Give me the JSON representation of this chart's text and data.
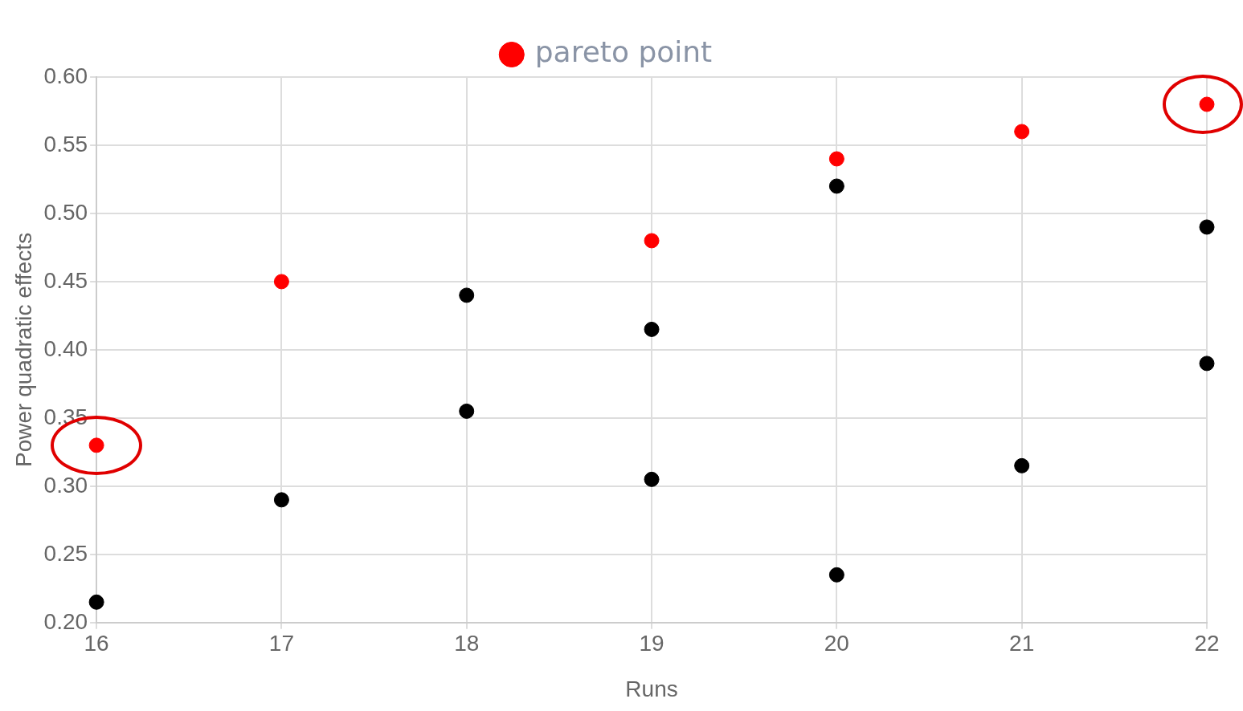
{
  "chart_data": {
    "type": "scatter",
    "xlabel": "Runs",
    "ylabel": "Power quadratic effects",
    "xlim": [
      16,
      22
    ],
    "xticks": [
      16,
      17,
      18,
      19,
      20,
      21,
      22
    ],
    "ylim": [
      0.2,
      0.6
    ],
    "yticks": [
      {
        "value": 0.2,
        "label": "0.20"
      },
      {
        "value": 0.25,
        "label": "0.25"
      },
      {
        "value": 0.3,
        "label": "0.30"
      },
      {
        "value": 0.35,
        "label": "0.35"
      },
      {
        "value": 0.4,
        "label": "0.40"
      },
      {
        "value": 0.45,
        "label": "0.45"
      },
      {
        "value": 0.5,
        "label": "0.50"
      },
      {
        "value": 0.55,
        "label": "0.55"
      },
      {
        "value": 0.6,
        "label": "0.60"
      }
    ],
    "grid": true,
    "legend": "top",
    "marker": "circle",
    "series": [
      {
        "name": "pareto point",
        "color": "#ff0000",
        "x": [
          16,
          17,
          19,
          20,
          21,
          22
        ],
        "values": [
          0.33,
          0.45,
          0.48,
          0.54,
          0.56,
          0.58
        ]
      },
      {
        "color": "#000000",
        "x": [
          16,
          17,
          18,
          18,
          19,
          19,
          20,
          20,
          21,
          22,
          22
        ],
        "values": [
          0.215,
          0.29,
          0.44,
          0.355,
          0.415,
          0.305,
          0.52,
          0.235,
          0.315,
          0.49,
          0.39
        ]
      }
    ]
  }
}
